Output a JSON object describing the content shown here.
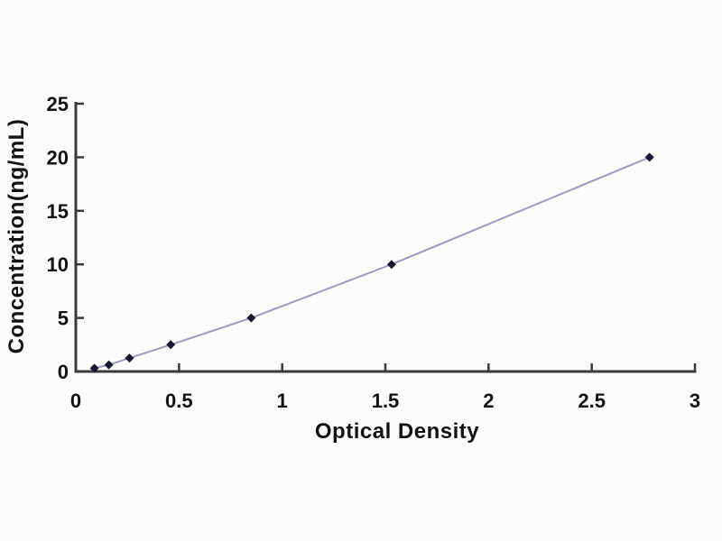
{
  "page": {
    "background": "#fcfcfa",
    "text_color": "#121212",
    "axis_color": "#3a3a3a"
  },
  "chart_data": {
    "type": "line",
    "title": "",
    "xlabel": "Optical Density",
    "ylabel": "Concentration(ng/mL)",
    "xlim": [
      0,
      3
    ],
    "ylim": [
      0,
      25
    ],
    "xticks": [
      0,
      0.5,
      1,
      1.5,
      2,
      2.5,
      3
    ],
    "yticks": [
      0,
      5,
      10,
      15,
      20,
      25
    ],
    "grid": false,
    "legend": "none",
    "series": [
      {
        "name": "standard-curve",
        "marker": "diamond",
        "marker_color": "#17172f",
        "line_color": "#9b9bc0",
        "points": [
          {
            "x": 0.09,
            "y": 0.31
          },
          {
            "x": 0.16,
            "y": 0.62
          },
          {
            "x": 0.26,
            "y": 1.25
          },
          {
            "x": 0.46,
            "y": 2.5
          },
          {
            "x": 0.85,
            "y": 5
          },
          {
            "x": 1.53,
            "y": 10
          },
          {
            "x": 2.78,
            "y": 20
          }
        ]
      }
    ]
  }
}
